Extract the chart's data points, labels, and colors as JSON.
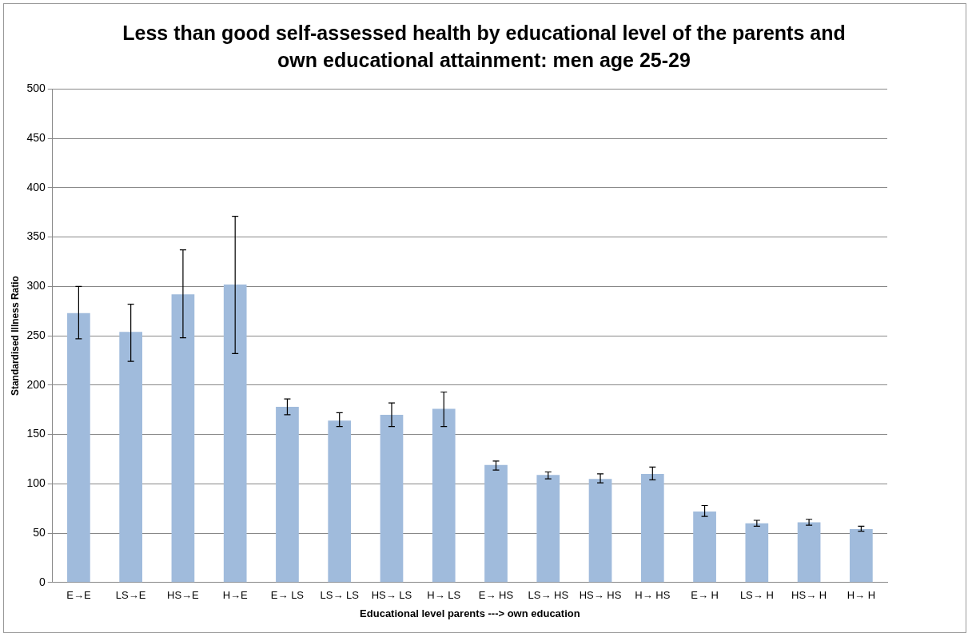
{
  "chart_data": {
    "type": "bar",
    "title": "Less than good self-assessed health by educational level of the parents and own educational attainment: men age 25-29",
    "xlabel": "Educational level parents ---> own education",
    "ylabel": "Standardised Illness Ratio",
    "categories": [
      "E→E",
      "LS→E",
      "HS→E",
      "H→E",
      "E→ LS",
      "LS→ LS",
      "HS→ LS",
      "H→ LS",
      "E→ HS",
      "LS→ HS",
      "HS→ HS",
      "H→ HS",
      "E→ H",
      "LS→ H",
      "HS→ H",
      "H→ H"
    ],
    "values": [
      273,
      254,
      292,
      302,
      178,
      164,
      170,
      176,
      119,
      109,
      105,
      110,
      72,
      60,
      61,
      54
    ],
    "errors": [
      [
        247,
        300
      ],
      [
        224,
        282
      ],
      [
        248,
        337
      ],
      [
        232,
        371
      ],
      [
        170,
        186
      ],
      [
        158,
        172
      ],
      [
        158,
        182
      ],
      [
        158,
        193
      ],
      [
        114,
        123
      ],
      [
        105,
        112
      ],
      [
        101,
        110
      ],
      [
        104,
        117
      ],
      [
        67,
        78
      ],
      [
        57,
        63
      ],
      [
        58,
        64
      ],
      [
        52,
        57
      ]
    ],
    "color": "#a0bbdc",
    "ylim": [
      0,
      500
    ],
    "yticks": [
      0,
      50,
      100,
      150,
      200,
      250,
      300,
      350,
      400,
      450,
      500
    ],
    "grid": "y"
  }
}
